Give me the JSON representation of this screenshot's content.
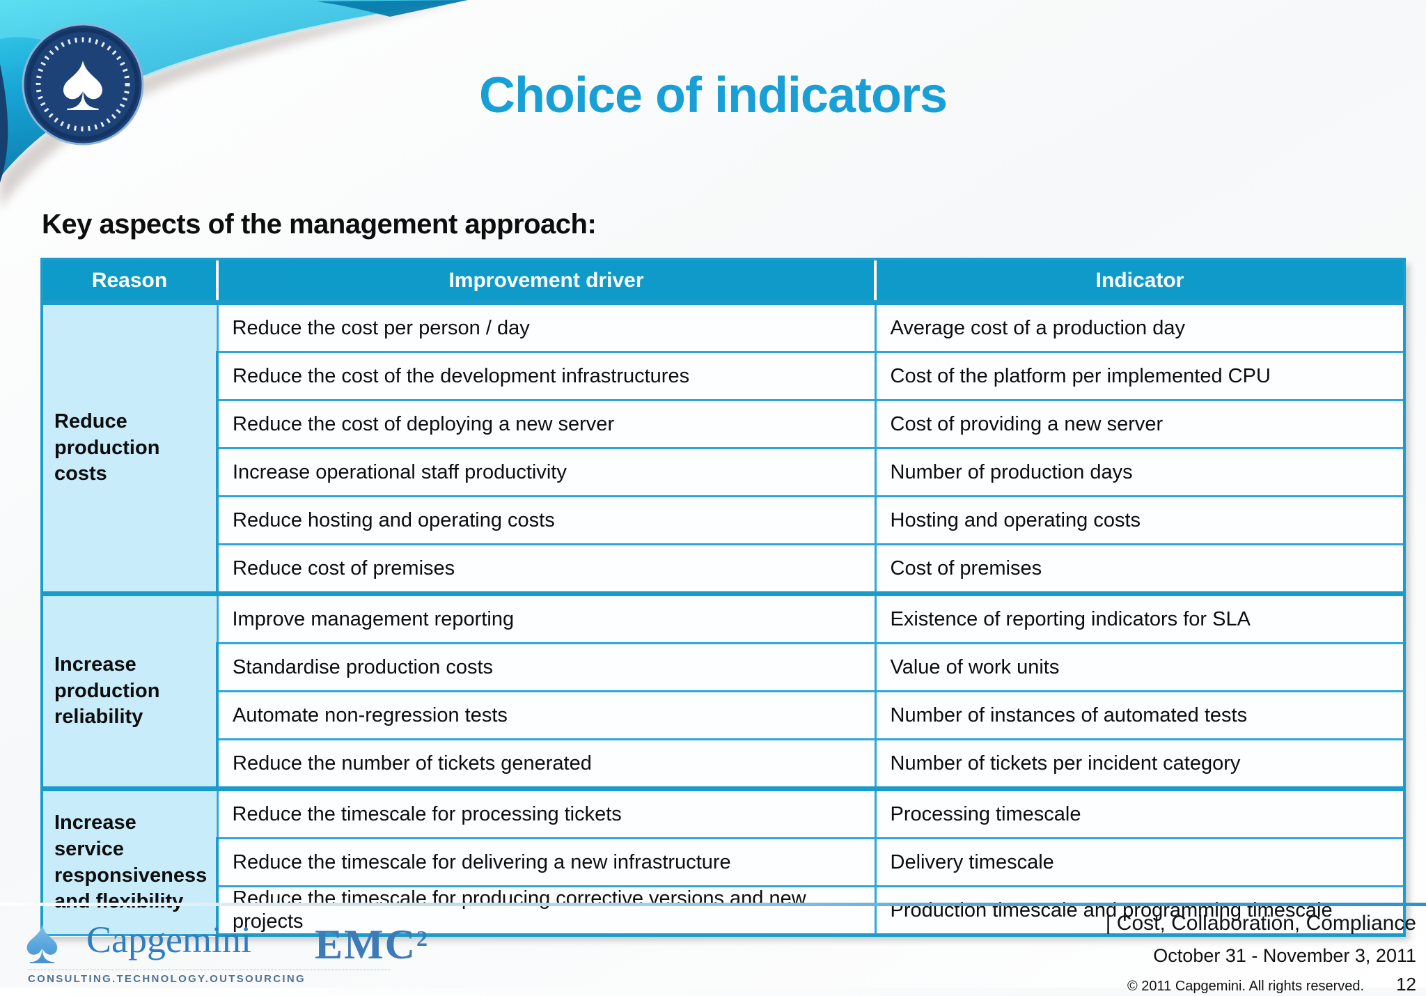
{
  "slide": {
    "title": "Choice of indicators",
    "heading": "Key aspects of the management approach:"
  },
  "table": {
    "headers": [
      "Reason",
      "Improvement driver",
      "Indicator"
    ],
    "groups": [
      {
        "reason": "Reduce production costs",
        "rows": [
          {
            "driver": "Reduce the cost per person / day",
            "indicator": "Average cost of a production day"
          },
          {
            "driver": "Reduce the cost of the development infrastructures",
            "indicator": "Cost of the platform per implemented CPU"
          },
          {
            "driver": "Reduce the cost of deploying a new server",
            "indicator": "Cost of providing a new server"
          },
          {
            "driver": "Increase operational staff productivity",
            "indicator": "Number of production days"
          },
          {
            "driver": "Reduce hosting and operating costs",
            "indicator": "Hosting and operating costs"
          },
          {
            "driver": "Reduce cost of premises",
            "indicator": "Cost of premises"
          }
        ]
      },
      {
        "reason": "Increase production reliability",
        "rows": [
          {
            "driver": "Improve management reporting",
            "indicator": "Existence of reporting indicators for SLA"
          },
          {
            "driver": "Standardise production costs",
            "indicator": "Value of work units"
          },
          {
            "driver": "Automate non-regression tests",
            "indicator": "Number of instances of automated tests"
          },
          {
            "driver": "Reduce the number of tickets generated",
            "indicator": "Number of tickets per incident category"
          }
        ]
      },
      {
        "reason": "Increase service responsiveness and flexibility",
        "rows": [
          {
            "driver": "Reduce the timescale for processing tickets",
            "indicator": "Processing timescale"
          },
          {
            "driver": "Reduce the timescale for delivering a new infrastructure",
            "indicator": "Delivery timescale"
          },
          {
            "driver": "Reduce the timescale  for producing corrective versions and new projects",
            "indicator": "Production timescale and programming timescale"
          }
        ]
      }
    ]
  },
  "footer": {
    "capgemini_wordmark": "Capgemini",
    "capgemini_tagline": "CONSULTING.TECHNOLOGY.OUTSOURCING",
    "emc_text": "EMC",
    "emc_superscript": "2",
    "conference_tagline": "| Cost, Collaboration, Compliance",
    "date_range": "October 31 - November 3, 2011",
    "copyright": "© 2011 Capgemini. All rights reserved.",
    "page_number": "12"
  },
  "icons": {
    "badge_spade": "♠",
    "capgemini_spade": "♠"
  },
  "colors": {
    "title_blue": "#189fd6",
    "table_header_blue": "#0f9bca",
    "table_border_cyan": "#2ba7dc",
    "reason_cell_blue": "#c9ecfa",
    "banner_cyan_light": "#41d6ee",
    "banner_cyan_dark": "#0b6f9e",
    "banner_navy": "#16406f",
    "capgemini_blue": "#2f7dc1",
    "emc_blue": "#3c7ab8"
  }
}
